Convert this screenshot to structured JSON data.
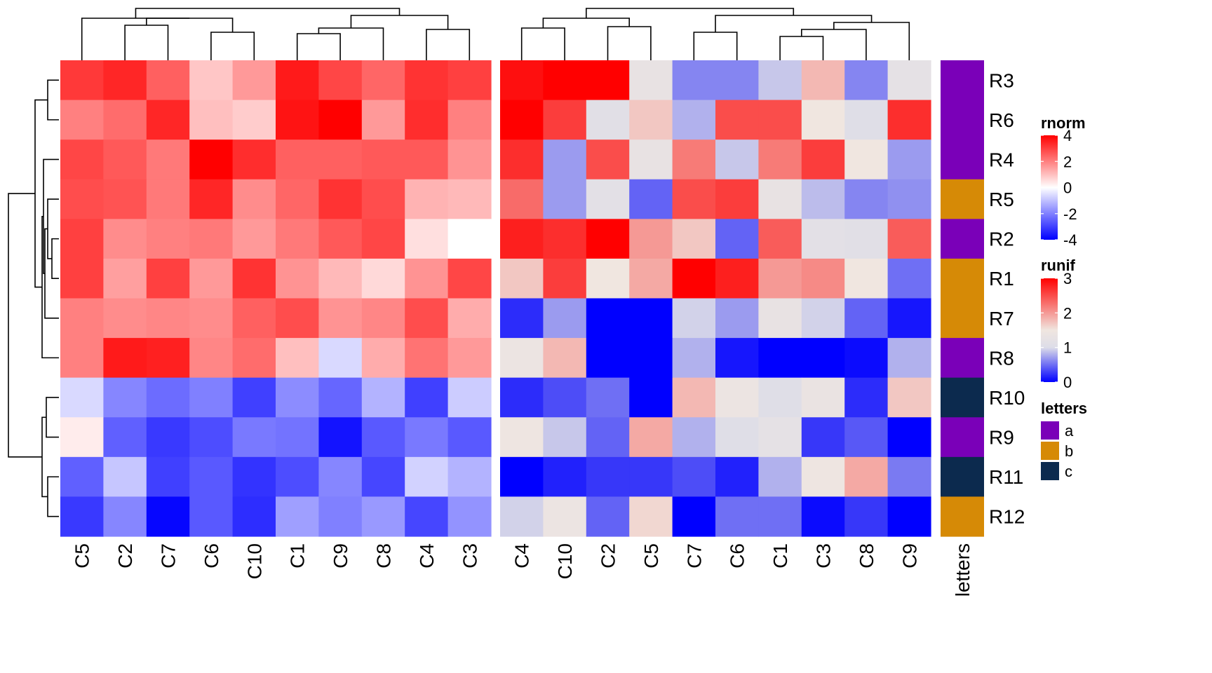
{
  "chart_data": [
    {
      "type": "heatmap",
      "name": "rnorm",
      "rows": [
        "R3",
        "R6",
        "R4",
        "R5",
        "R2",
        "R1",
        "R7",
        "R8",
        "R10",
        "R9",
        "R11",
        "R12"
      ],
      "columns": [
        "C5",
        "C2",
        "C7",
        "C6",
        "C10",
        "C1",
        "C9",
        "C8",
        "C4",
        "C3"
      ],
      "values": [
        [
          3.1,
          3.4,
          2.5,
          0.9,
          1.6,
          3.6,
          2.9,
          2.4,
          3.2,
          3.0
        ],
        [
          2.0,
          2.3,
          3.4,
          1.0,
          0.8,
          3.7,
          4.2,
          1.6,
          3.3,
          2.0
        ],
        [
          2.9,
          2.6,
          2.1,
          4.3,
          3.3,
          2.5,
          2.5,
          2.6,
          2.6,
          1.7
        ],
        [
          2.8,
          2.7,
          2.1,
          3.4,
          1.8,
          2.4,
          3.2,
          2.8,
          1.2,
          1.1
        ],
        [
          3.0,
          1.8,
          2.0,
          2.1,
          1.6,
          2.1,
          2.6,
          2.9,
          0.5,
          0.0
        ],
        [
          3.0,
          1.5,
          3.0,
          1.6,
          3.2,
          1.7,
          1.1,
          0.6,
          1.7,
          2.9
        ],
        [
          2.0,
          1.8,
          1.9,
          1.8,
          2.5,
          2.8,
          1.7,
          1.9,
          2.8,
          1.3
        ],
        [
          2.0,
          3.6,
          3.5,
          1.9,
          2.3,
          1.0,
          -0.6,
          1.3,
          2.2,
          1.6
        ],
        [
          -0.6,
          -1.9,
          -2.3,
          -2.0,
          -3.0,
          -1.8,
          -2.4,
          -1.2,
          -3.0,
          -0.8
        ],
        [
          0.3,
          -2.5,
          -3.1,
          -2.8,
          -2.1,
          -2.2,
          -3.7,
          -2.6,
          -2.1,
          -2.6
        ],
        [
          -2.5,
          -0.9,
          -3.0,
          -2.6,
          -3.2,
          -2.8,
          -1.9,
          -2.9,
          -0.7,
          -1.2
        ],
        [
          -3.1,
          -1.9,
          -3.9,
          -2.6,
          -3.3,
          -1.5,
          -2.0,
          -1.6,
          -2.9,
          -1.7
        ]
      ],
      "color_scale": {
        "title": "rnorm",
        "min": -4,
        "max": 4,
        "ticks": [
          4,
          2,
          0,
          -2,
          -4
        ],
        "colors": {
          "low": "#0000ff",
          "mid": "#ffffff",
          "high": "#ff0000"
        }
      }
    },
    {
      "type": "heatmap",
      "name": "runif",
      "rows": [
        "R3",
        "R6",
        "R4",
        "R5",
        "R2",
        "R1",
        "R7",
        "R8",
        "R10",
        "R9",
        "R11",
        "R12"
      ],
      "columns": [
        "C4",
        "C10",
        "C2",
        "C5",
        "C7",
        "C6",
        "C1",
        "C3",
        "C8",
        "C9"
      ],
      "values": [
        [
          2.9,
          3.0,
          3.0,
          1.3,
          0.6,
          0.6,
          0.9,
          1.8,
          0.6,
          1.2
        ],
        [
          3.0,
          2.6,
          1.1,
          1.7,
          0.8,
          2.5,
          2.5,
          1.5,
          1.05,
          2.7
        ],
        [
          2.7,
          0.7,
          2.5,
          1.3,
          2.2,
          0.9,
          2.2,
          2.6,
          1.5,
          0.7
        ],
        [
          2.3,
          0.7,
          1.15,
          0.45,
          2.5,
          2.6,
          1.3,
          0.85,
          0.6,
          0.65
        ],
        [
          2.8,
          2.7,
          3.0,
          2.0,
          1.7,
          0.45,
          2.4,
          1.15,
          1.1,
          2.4
        ],
        [
          1.7,
          2.6,
          1.5,
          1.9,
          3.0,
          2.8,
          2.0,
          2.1,
          1.5,
          0.5
        ],
        [
          0.2,
          0.7,
          -0.1,
          -0.2,
          0.95,
          0.7,
          1.3,
          0.95,
          0.45,
          0.1
        ],
        [
          1.4,
          1.8,
          -0.45,
          -0.3,
          0.8,
          0.1,
          -0.45,
          -0.25,
          0.05,
          0.8
        ],
        [
          0.2,
          0.35,
          0.5,
          -0.3,
          1.8,
          1.4,
          1.05,
          1.35,
          0.2,
          1.7
        ],
        [
          1.45,
          0.9,
          0.45,
          1.9,
          0.8,
          1.05,
          1.2,
          0.25,
          0.4,
          -0.1
        ],
        [
          -0.1,
          0.15,
          0.25,
          0.25,
          0.35,
          0.15,
          0.8,
          1.45,
          1.9,
          0.55
        ],
        [
          0.95,
          1.4,
          0.45,
          1.6,
          -0.05,
          0.5,
          0.5,
          0.05,
          0.25,
          0.0
        ]
      ],
      "color_scale": {
        "title": "runif",
        "min": 0,
        "max": 3,
        "ticks": [
          3,
          2,
          1,
          0
        ],
        "stops": [
          [
            0,
            "#0000ff"
          ],
          [
            1,
            "#dddde8"
          ],
          [
            1.5,
            "#f0e6e0"
          ],
          [
            3,
            "#ff0000"
          ]
        ]
      }
    }
  ],
  "annotation": {
    "label": "letters",
    "title": "letters",
    "values": [
      "a",
      "a",
      "a",
      "b",
      "a",
      "b",
      "b",
      "a",
      "c",
      "a",
      "c",
      "b"
    ],
    "legend": [
      {
        "label": "a",
        "color": "#7a00b8"
      },
      {
        "label": "b",
        "color": "#d68a06"
      },
      {
        "label": "c",
        "color": "#0c2a4e"
      }
    ]
  }
}
